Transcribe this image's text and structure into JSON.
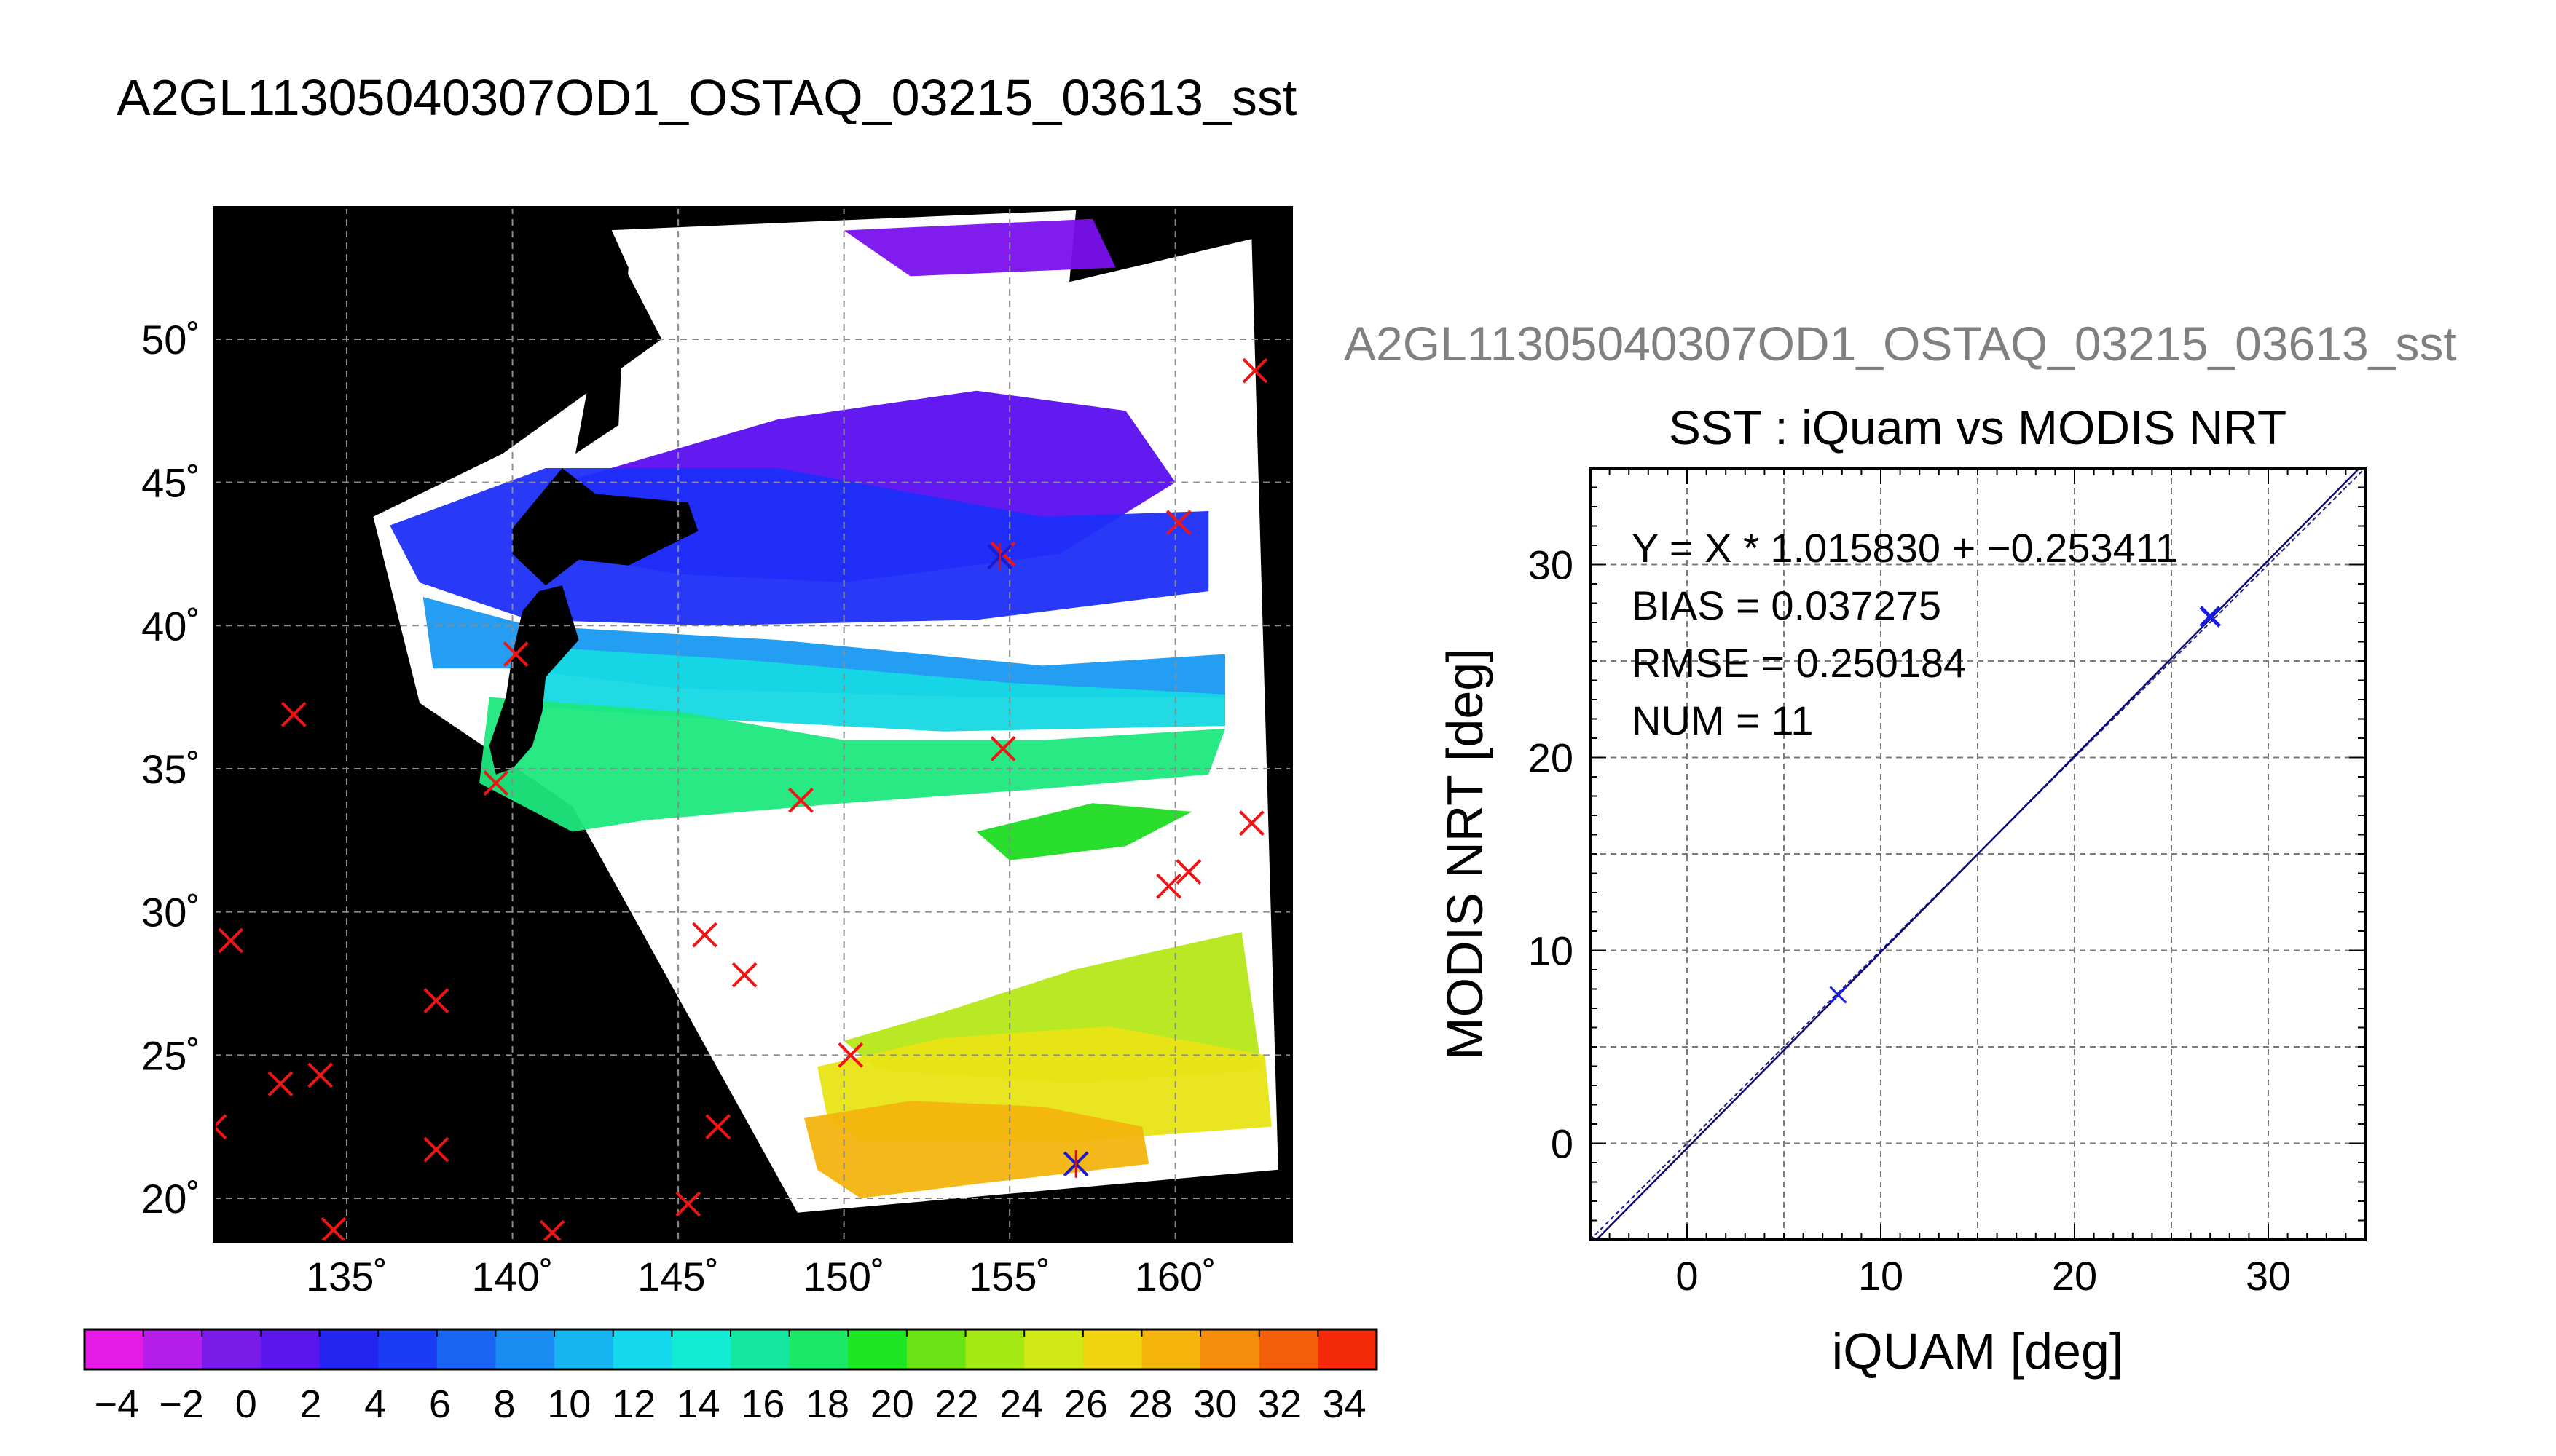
{
  "figure": {
    "main_title": "A2GL11305040307OD1_OSTAQ_03215_03613_sst",
    "scatter_title_text": "A2GL11305040307OD1_OSTAQ_03215_03613_sst"
  },
  "chart_data": [
    {
      "type": "map",
      "name": "sst_map",
      "lon_range": [
        131,
        163.5
      ],
      "lat_range": [
        18.5,
        54.6
      ],
      "x_ticks": [
        135,
        140,
        145,
        150,
        155,
        160
      ],
      "x_tick_labels": [
        "135˚",
        "140˚",
        "145˚",
        "150˚",
        "155˚",
        "160˚"
      ],
      "y_ticks": [
        20,
        25,
        30,
        35,
        40,
        45,
        50
      ],
      "y_tick_labels": [
        "20˚",
        "25˚",
        "30˚",
        "35˚",
        "40˚",
        "45˚",
        "50˚"
      ],
      "grid": true,
      "background": "#000000",
      "swath_lonlat": [
        [
          135.8,
          43.8
        ],
        [
          139.7,
          46.0
        ],
        [
          144.5,
          50.0
        ],
        [
          142.8,
          53.8
        ],
        [
          157.0,
          54.5
        ],
        [
          156.8,
          52.0
        ],
        [
          162.3,
          53.5
        ],
        [
          163.1,
          21.0
        ],
        [
          148.6,
          19.5
        ],
        [
          141.8,
          33.7
        ],
        [
          137.2,
          37.3
        ],
        [
          135.8,
          43.8
        ]
      ],
      "sst_regions": [
        {
          "name": "north-purple",
          "color": "#5a0ef0",
          "poly": [
            [
              141.5,
              45.0
            ],
            [
              148.0,
              47.2
            ],
            [
              154.0,
              48.2
            ],
            [
              158.5,
              47.5
            ],
            [
              160.0,
              45.0
            ],
            [
              156.5,
              42.5
            ],
            [
              150.0,
              41.5
            ],
            [
              145.0,
              41.8
            ],
            [
              141.5,
              42.5
            ]
          ]
        },
        {
          "name": "north-purple-top",
          "color": "#7a10ee",
          "poly": [
            [
              150.0,
              53.8
            ],
            [
              157.5,
              54.2
            ],
            [
              158.2,
              52.5
            ],
            [
              152.0,
              52.2
            ]
          ]
        },
        {
          "name": "blue-band",
          "color": "#1d2ef8",
          "poly": [
            [
              136.3,
              43.5
            ],
            [
              141.0,
              45.5
            ],
            [
              148.0,
              45.5
            ],
            [
              156.0,
              43.8
            ],
            [
              161.0,
              44.0
            ],
            [
              161.0,
              41.2
            ],
            [
              154.0,
              40.2
            ],
            [
              146.0,
              40.0
            ],
            [
              140.5,
              40.2
            ],
            [
              137.2,
              41.5
            ]
          ]
        },
        {
          "name": "light-blue",
          "color": "#1899f2",
          "poly": [
            [
              137.3,
              41.0
            ],
            [
              140.5,
              40.0
            ],
            [
              148.0,
              39.5
            ],
            [
              156.0,
              38.6
            ],
            [
              161.5,
              39.0
            ],
            [
              161.5,
              37.5
            ],
            [
              154.0,
              37.5
            ],
            [
              145.0,
              37.8
            ],
            [
              140.0,
              38.5
            ],
            [
              137.6,
              38.5
            ]
          ]
        },
        {
          "name": "cyan",
          "color": "#16d8e3",
          "poly": [
            [
              140.2,
              39.3
            ],
            [
              147.0,
              38.8
            ],
            [
              155.0,
              38.0
            ],
            [
              161.5,
              37.6
            ],
            [
              161.5,
              36.5
            ],
            [
              153.0,
              36.3
            ],
            [
              145.0,
              36.8
            ],
            [
              140.5,
              37.2
            ]
          ]
        },
        {
          "name": "green",
          "color": "#1ee87e",
          "poly": [
            [
              139.3,
              37.5
            ],
            [
              145.0,
              37.0
            ],
            [
              150.0,
              36.0
            ],
            [
              156.0,
              36.0
            ],
            [
              161.5,
              36.4
            ],
            [
              161.0,
              34.8
            ],
            [
              156.0,
              34.3
            ],
            [
              150.0,
              33.8
            ],
            [
              144.0,
              33.2
            ],
            [
              141.8,
              32.8
            ],
            [
              139.0,
              34.5
            ]
          ]
        },
        {
          "name": "green-patch",
          "color": "#1ddc22",
          "poly": [
            [
              154.0,
              32.8
            ],
            [
              157.5,
              33.8
            ],
            [
              160.5,
              33.5
            ],
            [
              158.5,
              32.3
            ],
            [
              155.0,
              31.8
            ]
          ]
        },
        {
          "name": "yellow-green",
          "color": "#b5e818",
          "poly": [
            [
              153.0,
              26.5
            ],
            [
              157.0,
              28.0
            ],
            [
              162.0,
              29.3
            ],
            [
              162.6,
              24.5
            ],
            [
              157.0,
              24.0
            ],
            [
              151.0,
              24.5
            ],
            [
              150.0,
              25.5
            ]
          ]
        },
        {
          "name": "yellow",
          "color": "#e8e414",
          "poly": [
            [
              149.2,
              24.6
            ],
            [
              153.0,
              25.6
            ],
            [
              158.0,
              26.0
            ],
            [
              162.7,
              25.0
            ],
            [
              162.9,
              22.5
            ],
            [
              157.0,
              22.0
            ],
            [
              150.5,
              22.0
            ],
            [
              149.5,
              22.8
            ]
          ]
        },
        {
          "name": "orange",
          "color": "#f4b40e",
          "poly": [
            [
              148.8,
              22.8
            ],
            [
              152.0,
              23.4
            ],
            [
              156.0,
              23.2
            ],
            [
              159.0,
              22.5
            ],
            [
              159.2,
              21.2
            ],
            [
              154.0,
              20.5
            ],
            [
              150.5,
              20.0
            ],
            [
              149.2,
              21.0
            ]
          ]
        }
      ],
      "land_lonlat": [
        [
          [
            141.0,
            41.4
          ],
          [
            140.0,
            42.5
          ],
          [
            140.0,
            43.4
          ],
          [
            141.5,
            45.5
          ],
          [
            142.5,
            44.6
          ],
          [
            145.3,
            44.3
          ],
          [
            145.6,
            43.3
          ],
          [
            143.5,
            42.1
          ],
          [
            142.0,
            42.3
          ]
        ],
        [
          [
            141.9,
            46.0
          ],
          [
            142.3,
            48.5
          ],
          [
            142.5,
            51.0
          ],
          [
            142.8,
            54.3
          ],
          [
            143.5,
            52.5
          ],
          [
            143.3,
            49.5
          ],
          [
            143.2,
            47.0
          ]
        ],
        [
          [
            140.8,
            41.2
          ],
          [
            141.5,
            41.4
          ],
          [
            142.0,
            39.5
          ],
          [
            141.0,
            38.2
          ],
          [
            140.9,
            37.0
          ],
          [
            140.6,
            35.8
          ],
          [
            140.0,
            35.0
          ],
          [
            139.5,
            34.8
          ],
          [
            139.3,
            35.8
          ],
          [
            139.8,
            37.5
          ],
          [
            140.0,
            39.0
          ],
          [
            140.3,
            40.5
          ]
        ]
      ],
      "colorbar": {
        "min": -5,
        "max": 35,
        "tick_labels": [
          "−4",
          "−2",
          "0",
          "2",
          "4",
          "6",
          "8",
          "10",
          "12",
          "14",
          "16",
          "18",
          "20",
          "22",
          "24",
          "26",
          "28",
          "30",
          "32",
          "34"
        ],
        "colors": [
          "#e61ae6",
          "#b41ee8",
          "#7a1ce9",
          "#5a16ec",
          "#2424f0",
          "#1a3cf2",
          "#1a64f2",
          "#1a8cf2",
          "#16b4f0",
          "#14d8ee",
          "#12ecd4",
          "#14e8a0",
          "#1ae866",
          "#1ee624",
          "#6ae414",
          "#a4e814",
          "#d0e814",
          "#f0d410",
          "#f4b40c",
          "#f48c0c",
          "#f4600a",
          "#f42a0a"
        ]
      },
      "markers_red_x": [
        [
          131.5,
          29.0
        ],
        [
          131.0,
          22.5
        ],
        [
          133.0,
          24.0
        ],
        [
          134.2,
          24.3
        ],
        [
          133.4,
          36.9
        ],
        [
          134.6,
          18.9
        ],
        [
          137.7,
          26.9
        ],
        [
          137.7,
          21.7
        ],
        [
          139.5,
          34.5
        ],
        [
          140.1,
          39.0
        ],
        [
          141.2,
          18.8
        ],
        [
          145.3,
          19.8
        ],
        [
          145.8,
          29.2
        ],
        [
          146.2,
          22.5
        ],
        [
          147.0,
          27.8
        ],
        [
          148.7,
          33.9
        ],
        [
          150.2,
          25.0
        ],
        [
          154.8,
          35.7
        ],
        [
          154.8,
          42.5
        ],
        [
          159.8,
          30.9
        ],
        [
          160.1,
          43.6
        ],
        [
          160.4,
          31.4
        ],
        [
          162.4,
          48.9
        ],
        [
          162.3,
          33.1
        ]
      ],
      "markers_blue_x": [
        [
          154.7,
          42.4
        ],
        [
          157.0,
          21.2
        ]
      ]
    },
    {
      "type": "scatter",
      "name": "sst_scatter",
      "title": "SST : iQuam vs MODIS NRT",
      "xlabel": "iQUAM [deg]",
      "ylabel": "MODIS NRT [deg]",
      "xlim": [
        -5,
        35
      ],
      "ylim": [
        -5,
        35
      ],
      "xticks": [
        0,
        10,
        20,
        30
      ],
      "yticks": [
        0,
        10,
        20,
        30
      ],
      "grid": true,
      "points": [
        {
          "x": 7.8,
          "y": 7.7
        },
        {
          "x": 27.0,
          "y": 27.3
        }
      ],
      "fit": {
        "slope": 1.01583,
        "intercept": -0.253411
      },
      "stats_lines": [
        "Y = X * 1.015830 + −0.253411",
        "BIAS = 0.037275",
        "RMSE = 0.250184",
        "NUM = 11"
      ]
    }
  ]
}
